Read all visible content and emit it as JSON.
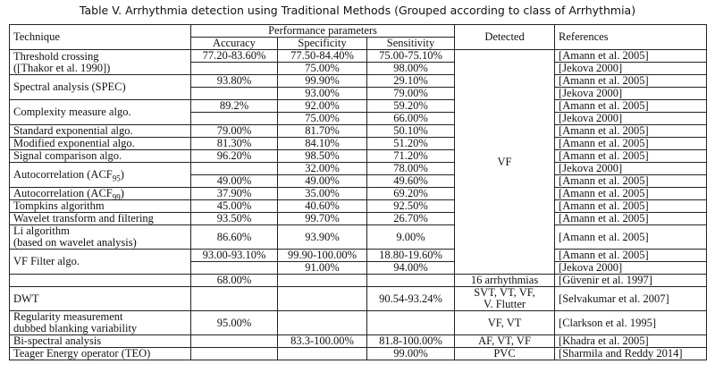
{
  "header": {
    "title": "Table V. Arrhythmia detection using Traditional Methods (Grouped according to class of Arrhythmia)"
  },
  "table": {
    "columns": [
      "Technique",
      "Accuracy",
      "Specificity",
      "Sensitivity",
      "Detected",
      "References"
    ],
    "group_header": "Performance parameters",
    "rows": [
      {
        "technique": "Threshold crossing\n([Thakor et al. 1990])",
        "detected": "VF",
        "sub": [
          [
            "77.20-83.60%",
            "77.50-84.40%",
            "75.00-75.10%",
            "[Amann et al. 2005]"
          ],
          [
            null,
            "75.00%",
            "98.00%",
            "[Jekova 2000]"
          ]
        ]
      },
      {
        "technique": "Spectral analysis (SPEC)",
        "detected": null,
        "sub": [
          [
            "93.80%",
            "99.90%",
            "29.10%",
            "[Amann et al. 2005]"
          ],
          [
            null,
            "93.00%",
            "79.00%",
            "[Jekova 2000]"
          ]
        ]
      },
      {
        "technique": "Complexity measure algo.",
        "detected": null,
        "sub": [
          [
            "89.2%",
            "92.00%",
            "59.20%",
            "[Amann et al. 2005]"
          ],
          [
            null,
            "75.00%",
            "66.00%",
            "[Jekova 2000]"
          ]
        ]
      },
      {
        "technique": "Standard exponential algo.",
        "detected": null,
        "sub": [
          [
            "79.00%",
            "81.70%",
            "50.10%",
            "[Amann et al. 2005]"
          ]
        ]
      },
      {
        "technique": "Modified exponential algo.",
        "detected": null,
        "sub": [
          [
            "81.30%",
            "84.10%",
            "51.20%",
            "[Amann et al. 2005]"
          ]
        ]
      },
      {
        "technique": "Signal comparison algo.",
        "detected": null,
        "sub": [
          [
            "96.20%",
            "98.50%",
            "71.20%",
            "[Amann et al. 2005]"
          ]
        ]
      },
      {
        "technique": {
          "text": "Autocorrelation (ACF",
          "sub": "95",
          "tail": ")"
        },
        "detected": null,
        "sub": [
          [
            null,
            "32.00%",
            "78.00%",
            "[Jekova 2000]"
          ],
          [
            "49.00%",
            "49.00%",
            "49.60%",
            "[Amann et al. 2005]"
          ]
        ]
      },
      {
        "technique": {
          "text": "Autocorrelation (ACF",
          "sub": "99",
          "tail": ")"
        },
        "detected": null,
        "sub": [
          [
            "37.90%",
            "35.00%",
            "69.20%",
            "[Amann et al. 2005]"
          ]
        ]
      },
      {
        "technique": "Tompkins algorithm",
        "detected": null,
        "sub": [
          [
            "45.00%",
            "40.60%",
            "92.50%",
            "[Amann et al. 2005]"
          ]
        ]
      },
      {
        "technique": "Wavelet transform and filtering",
        "detected": null,
        "sub": [
          [
            "93.50%",
            "99.70%",
            "26.70%",
            "[Amann et al. 2005]"
          ]
        ]
      },
      {
        "technique": "Li algorithm\n(based on wavelet analysis)",
        "detected": null,
        "sub": [
          [
            "86.60%",
            "93.90%",
            "9.00%",
            "[Amann et al. 2005]"
          ]
        ]
      },
      {
        "technique": "VF Filter algo.",
        "detected": null,
        "sub": [
          [
            "93.00-93.10%",
            "99.90-100.00%",
            "18.80-19.60%",
            "[Amann et al. 2005]"
          ],
          [
            null,
            "91.00%",
            "94.00%",
            "[Jekova 2000]"
          ]
        ]
      },
      {
        "technique": null,
        "detected": "16 arrhythmias",
        "sub": [
          [
            "68.00%",
            null,
            null,
            "[Güvenir et al. 1997]"
          ]
        ]
      },
      {
        "technique": "DWT",
        "detected": "SVT, VT, VF,\nV. Flutter",
        "sub": [
          [
            null,
            null,
            "90.54-93.24%",
            "[Selvakumar et al. 2007]"
          ]
        ]
      },
      {
        "technique": "Regularity measurement\ndubbed blanking variability",
        "detected": "VF, VT",
        "sub": [
          [
            "95.00%",
            null,
            null,
            "[Clarkson et al. 1995]"
          ]
        ]
      },
      {
        "technique": "Bi-spectral analysis",
        "detected": "AF, VT, VF",
        "sub": [
          [
            null,
            "83.3-100.00%",
            "81.8-100.00%",
            "[Khadra et al. 2005]"
          ]
        ]
      },
      {
        "technique": "Teager Energy operator (TEO)",
        "detected": "PVC",
        "sub": [
          [
            null,
            null,
            "99.00%",
            "[Sharmila and Reddy 2014]"
          ]
        ]
      }
    ]
  }
}
